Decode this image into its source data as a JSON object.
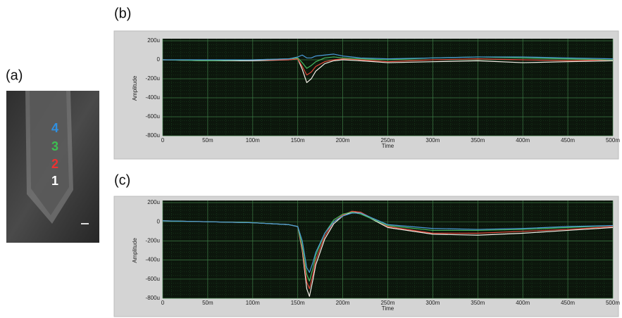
{
  "image_panel": {
    "label": "(a)",
    "markers": [
      "4",
      "3",
      "2",
      "1"
    ]
  },
  "chart_data": [
    {
      "type": "line",
      "title": "(b)",
      "x_label": "Time",
      "y_label": "Amplitude",
      "xlim": [
        0,
        0.5
      ],
      "ylim": [
        -0.0008,
        0.0002
      ],
      "grid": true,
      "xticks": [
        0,
        {
          "value": 0.05,
          "label": "50m"
        },
        {
          "value": 0.1,
          "label": "100m"
        },
        {
          "value": 0.15,
          "label": "150m"
        },
        {
          "value": 0.2,
          "label": "200m"
        },
        {
          "value": 0.25,
          "label": "250m"
        },
        {
          "value": 0.3,
          "label": "300m"
        },
        {
          "value": 0.35,
          "label": "350m"
        },
        {
          "value": 0.4,
          "label": "400m"
        },
        {
          "value": 0.45,
          "label": "450m"
        },
        {
          "value": 0.5,
          "label": "500m"
        }
      ],
      "yticks": [
        {
          "value": 0.0002,
          "label": "200u"
        },
        0,
        {
          "value": -0.0002,
          "label": "-200u"
        },
        {
          "value": -0.0004,
          "label": "-400u"
        },
        {
          "value": -0.0006,
          "label": "-600u"
        },
        {
          "value": -0.0008,
          "label": "-800u"
        }
      ],
      "x": [
        0,
        0.05,
        0.1,
        0.14,
        0.15,
        0.155,
        0.16,
        0.165,
        0.17,
        0.18,
        0.19,
        0.2,
        0.22,
        0.25,
        0.3,
        0.35,
        0.4,
        0.45,
        0.5
      ],
      "series": [
        {
          "color": "#f4f0e8",
          "values": [
            0,
            -1e-05,
            -1e-05,
            0,
            1e-05,
            -0.0001,
            -0.00024,
            -0.0002,
            -0.00012,
            -4e-05,
            -1e-05,
            0,
            -1e-05,
            -3e-05,
            -2e-05,
            -1e-05,
            -3e-05,
            -2e-05,
            -1e-05
          ]
        },
        {
          "color": "#e0473a",
          "values": [
            0,
            -1e-05,
            0,
            0,
            1e-05,
            -7e-05,
            -0.00016,
            -0.00013,
            -7e-05,
            -2e-05,
            0,
            1e-05,
            0,
            -2e-05,
            0,
            1e-05,
            0,
            -1e-05,
            0
          ]
        },
        {
          "color": "#48b860",
          "values": [
            0,
            -1e-05,
            0,
            1e-05,
            2e-05,
            -3e-05,
            -9e-05,
            -6e-05,
            -2e-05,
            2e-05,
            3e-05,
            2e-05,
            1e-05,
            0,
            2e-05,
            3e-05,
            2e-05,
            1e-05,
            0
          ]
        },
        {
          "color": "#4a9ad8",
          "values": [
            0,
            0,
            0,
            1e-05,
            3e-05,
            5e-05,
            2e-05,
            2e-05,
            4e-05,
            5e-05,
            6e-05,
            4e-05,
            2e-05,
            1e-05,
            2e-05,
            3e-05,
            3e-05,
            2e-05,
            1e-05
          ]
        }
      ]
    },
    {
      "type": "line",
      "title": "(c)",
      "x_label": "Time",
      "y_label": "Amplitude",
      "xlim": [
        0,
        0.5
      ],
      "ylim": [
        -0.0008,
        0.0002
      ],
      "grid": true,
      "xticks": [
        0,
        {
          "value": 0.05,
          "label": "50m"
        },
        {
          "value": 0.1,
          "label": "100m"
        },
        {
          "value": 0.15,
          "label": "150m"
        },
        {
          "value": 0.2,
          "label": "200m"
        },
        {
          "value": 0.25,
          "label": "250m"
        },
        {
          "value": 0.3,
          "label": "300m"
        },
        {
          "value": 0.35,
          "label": "350m"
        },
        {
          "value": 0.4,
          "label": "400m"
        },
        {
          "value": 0.45,
          "label": "450m"
        },
        {
          "value": 0.5,
          "label": "500m"
        }
      ],
      "yticks": [
        {
          "value": 0.0002,
          "label": "200u"
        },
        0,
        {
          "value": -0.0002,
          "label": "-200u"
        },
        {
          "value": -0.0004,
          "label": "-400u"
        },
        {
          "value": -0.0006,
          "label": "-600u"
        },
        {
          "value": -0.0008,
          "label": "-800u"
        }
      ],
      "x": [
        0,
        0.05,
        0.1,
        0.14,
        0.15,
        0.155,
        0.16,
        0.163,
        0.167,
        0.17,
        0.18,
        0.19,
        0.2,
        0.21,
        0.22,
        0.25,
        0.3,
        0.35,
        0.4,
        0.45,
        0.5
      ],
      "series": [
        {
          "color": "#f4f0e8",
          "values": [
            1e-05,
            0,
            -1e-05,
            -3e-05,
            -5e-05,
            -0.0003,
            -0.0007,
            -0.00078,
            -0.0006,
            -0.00045,
            -0.00018,
            -2e-05,
            6e-05,
            0.0001,
            9e-05,
            -6e-05,
            -0.00013,
            -0.00014,
            -0.00012,
            -9e-05,
            -6e-05
          ]
        },
        {
          "color": "#e0473a",
          "values": [
            1e-05,
            0,
            -1e-05,
            -3e-05,
            -5e-05,
            -0.00028,
            -0.00063,
            -0.0007,
            -0.00055,
            -0.0004,
            -0.00015,
            0,
            7e-05,
            0.00011,
            0.0001,
            -5e-05,
            -0.00012,
            -0.00012,
            -0.0001,
            -8e-05,
            -5e-05
          ]
        },
        {
          "color": "#48b860",
          "values": [
            1e-05,
            0,
            -1e-05,
            -3e-05,
            -5e-05,
            -0.00025,
            -0.00055,
            -0.00062,
            -0.00048,
            -0.00035,
            -0.00012,
            2e-05,
            8e-05,
            0.0001,
            8e-05,
            -4e-05,
            -9e-05,
            -9e-05,
            -8e-05,
            -6e-05,
            -4e-05
          ]
        },
        {
          "color": "#4a9ad8",
          "values": [
            1e-05,
            0,
            -1e-05,
            -3e-05,
            -5e-05,
            -0.0002,
            -0.00048,
            -0.00053,
            -0.00042,
            -0.00032,
            -0.00012,
            0,
            6e-05,
            9e-05,
            9e-05,
            -3e-05,
            -7e-05,
            -8e-05,
            -7e-05,
            -5e-05,
            -4e-05
          ]
        }
      ]
    }
  ]
}
